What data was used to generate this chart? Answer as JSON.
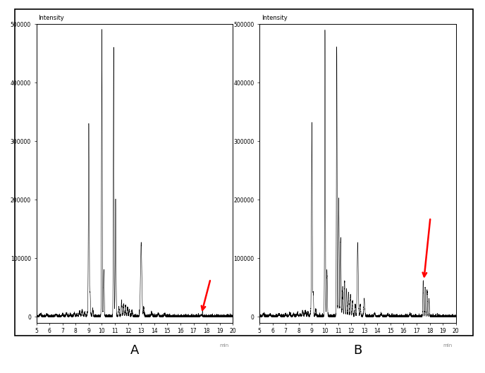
{
  "ylabel": "Intensity",
  "xlabel_unit": "min",
  "xlim": [
    5,
    20
  ],
  "ylim": [
    -10000,
    500000
  ],
  "yticks": [
    0,
    100000,
    200000,
    300000,
    400000,
    500000
  ],
  "ytick_labels": [
    "0",
    "100000",
    "200000",
    "300000",
    "400000",
    "500000"
  ],
  "xticks": [
    5,
    6,
    7,
    8,
    9,
    10,
    11,
    12,
    13,
    14,
    15,
    16,
    17,
    18,
    19,
    20
  ],
  "background_color": "#ffffff",
  "line_color": "#000000",
  "arrow_color": "#ff0000",
  "panel_A_label": "A",
  "panel_B_label": "B"
}
